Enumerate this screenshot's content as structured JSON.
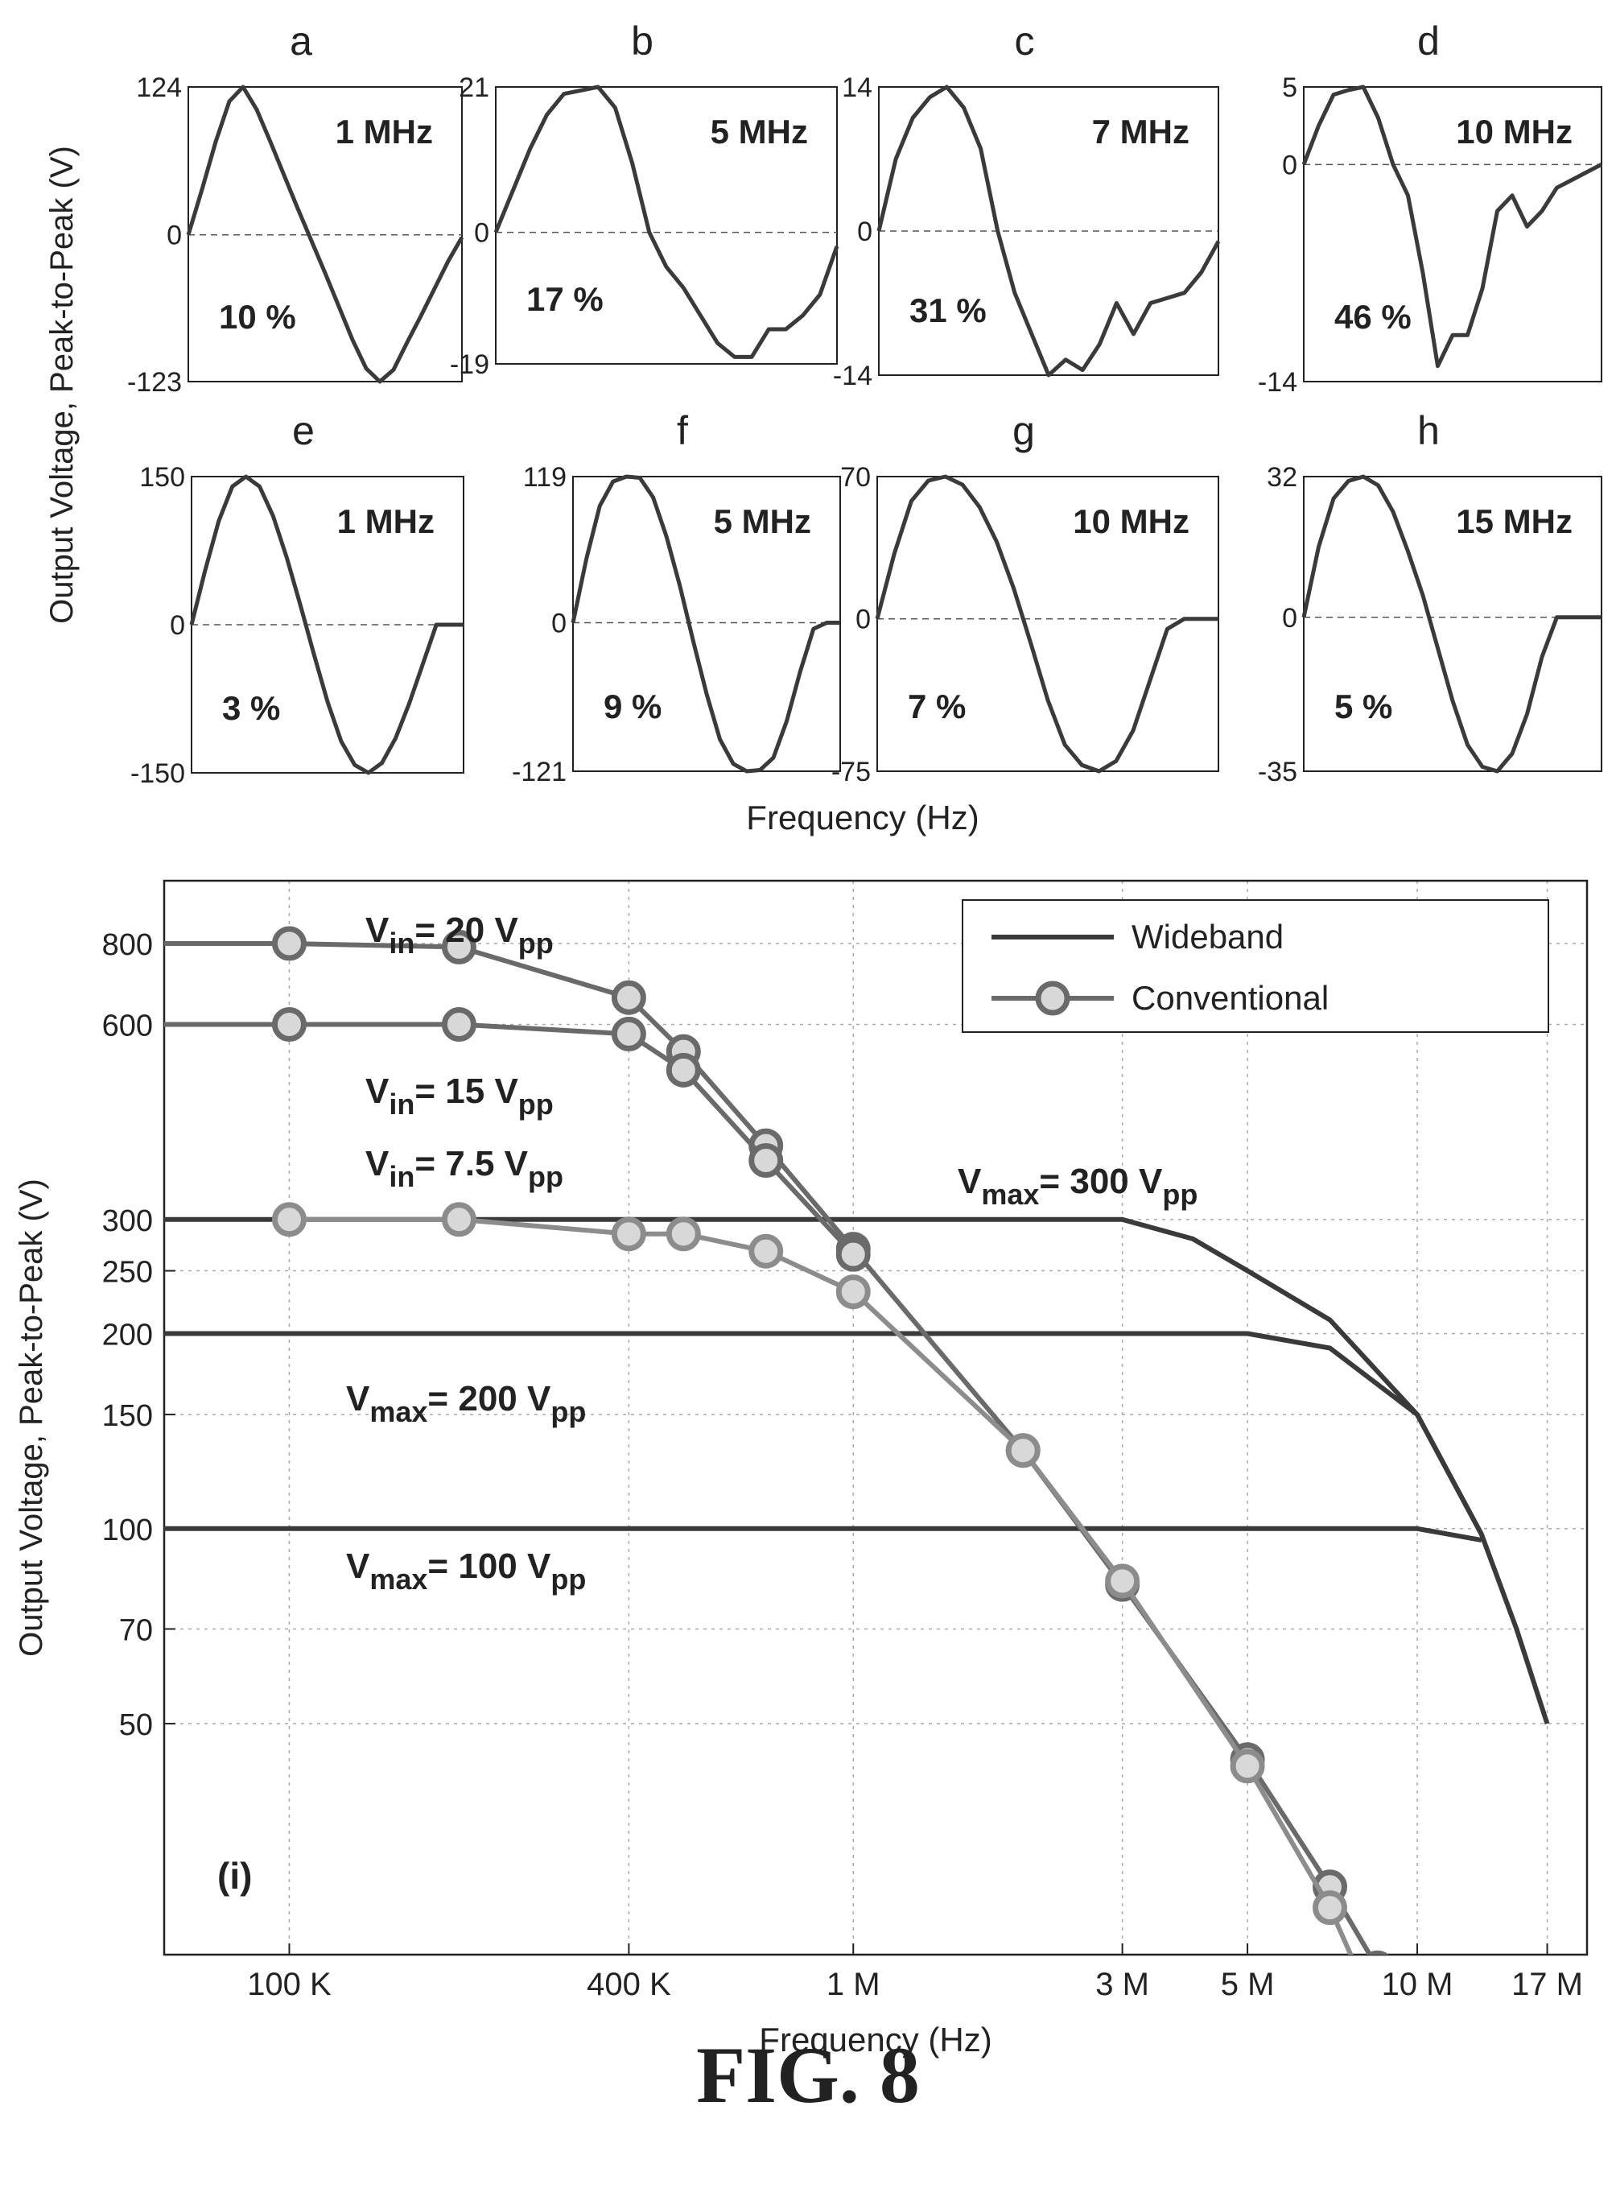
{
  "figure_label": "FIG. 8",
  "colors": {
    "axis": "#222222",
    "grid": "#aaaaaa",
    "wideband": "#3a3a3a",
    "conventional": "#6a6a6a",
    "light": "#8c8c8c"
  },
  "chart_data": [
    {
      "panel": "a",
      "type": "line",
      "frequency": "1 MHz",
      "percent": "10 %",
      "yticks": [
        "124",
        "0",
        "-123"
      ],
      "ylim": [
        -123,
        124
      ],
      "x": [
        0,
        0.05,
        0.1,
        0.15,
        0.2,
        0.25,
        0.3,
        0.35,
        0.4,
        0.45,
        0.5,
        0.55,
        0.6,
        0.65,
        0.7,
        0.75,
        0.8,
        0.85,
        0.9,
        0.95,
        1
      ],
      "values": [
        0,
        38,
        78,
        112,
        124,
        105,
        78,
        50,
        22,
        -5,
        -32,
        -60,
        -88,
        -112,
        -123,
        -113,
        -90,
        -68,
        -45,
        -22,
        -2
      ]
    },
    {
      "panel": "b",
      "type": "line",
      "frequency": "5 MHz",
      "percent": "17 %",
      "yticks": [
        "21",
        "0",
        "-19"
      ],
      "ylim": [
        -19,
        21
      ],
      "x": [
        0,
        0.05,
        0.1,
        0.15,
        0.2,
        0.25,
        0.3,
        0.35,
        0.4,
        0.45,
        0.5,
        0.55,
        0.6,
        0.65,
        0.7,
        0.75,
        0.8,
        0.85,
        0.9,
        0.95,
        1
      ],
      "values": [
        0,
        6,
        12,
        17,
        20,
        20.5,
        21,
        18,
        10,
        0,
        -5,
        -8,
        -12,
        -16,
        -18,
        -18,
        -14,
        -14,
        -12,
        -9,
        -2
      ]
    },
    {
      "panel": "c",
      "type": "line",
      "frequency": "7 MHz",
      "percent": "31 %",
      "yticks": [
        "14",
        "0",
        "-14"
      ],
      "ylim": [
        -14,
        14
      ],
      "x": [
        0,
        0.05,
        0.1,
        0.15,
        0.2,
        0.25,
        0.3,
        0.35,
        0.4,
        0.45,
        0.5,
        0.55,
        0.6,
        0.65,
        0.7,
        0.75,
        0.8,
        0.85,
        0.9,
        0.95,
        1
      ],
      "values": [
        0,
        7,
        11,
        13,
        14,
        12,
        8,
        0,
        -6,
        -10,
        -14,
        -12.5,
        -13.5,
        -11,
        -7,
        -10,
        -7,
        -6.5,
        -6,
        -4,
        -1
      ]
    },
    {
      "panel": "d",
      "type": "line",
      "frequency": "10 MHz",
      "percent": "46 %",
      "yticks": [
        "5",
        "0",
        "-14"
      ],
      "ylim": [
        -14,
        5
      ],
      "x": [
        0,
        0.05,
        0.1,
        0.15,
        0.2,
        0.25,
        0.3,
        0.35,
        0.4,
        0.45,
        0.5,
        0.55,
        0.6,
        0.65,
        0.7,
        0.75,
        0.8,
        0.85,
        0.9,
        0.95,
        1
      ],
      "values": [
        0,
        2.5,
        4.5,
        4.8,
        5,
        3,
        0,
        -2,
        -7,
        -13,
        -11,
        -11,
        -8,
        -3,
        -2,
        -4,
        -3,
        -1.5,
        -1,
        -0.5,
        0
      ]
    },
    {
      "panel": "e",
      "type": "line",
      "frequency": "1 MHz",
      "percent": "3 %",
      "yticks": [
        "150",
        "0",
        "-150"
      ],
      "ylim": [
        -150,
        150
      ],
      "x": [
        0,
        0.05,
        0.1,
        0.15,
        0.2,
        0.25,
        0.3,
        0.35,
        0.4,
        0.45,
        0.5,
        0.55,
        0.6,
        0.65,
        0.7,
        0.75,
        0.8,
        0.85,
        0.9,
        0.95,
        1
      ],
      "values": [
        0,
        55,
        105,
        140,
        150,
        140,
        110,
        68,
        20,
        -30,
        -78,
        -118,
        -142,
        -150,
        -140,
        -115,
        -80,
        -40,
        0,
        0,
        0
      ]
    },
    {
      "panel": "f",
      "type": "line",
      "frequency": "5 MHz",
      "percent": "9 %",
      "yticks": [
        "119",
        "0",
        "-121"
      ],
      "ylim": [
        -121,
        119
      ],
      "x": [
        0,
        0.05,
        0.1,
        0.15,
        0.2,
        0.25,
        0.3,
        0.35,
        0.4,
        0.45,
        0.5,
        0.55,
        0.6,
        0.65,
        0.7,
        0.75,
        0.8,
        0.85,
        0.9,
        0.95,
        1
      ],
      "values": [
        0,
        52,
        95,
        115,
        119,
        118,
        102,
        70,
        30,
        -15,
        -58,
        -95,
        -115,
        -121,
        -120,
        -110,
        -80,
        -40,
        -5,
        0,
        0
      ]
    },
    {
      "panel": "g",
      "type": "line",
      "frequency": "10 MHz",
      "percent": "7 %",
      "yticks": [
        "70",
        "0",
        "-75"
      ],
      "ylim": [
        -75,
        70
      ],
      "x": [
        0,
        0.05,
        0.1,
        0.15,
        0.2,
        0.25,
        0.3,
        0.35,
        0.4,
        0.45,
        0.5,
        0.55,
        0.6,
        0.65,
        0.7,
        0.75,
        0.8,
        0.85,
        0.9,
        0.95,
        1
      ],
      "values": [
        0,
        32,
        58,
        68,
        70,
        66,
        55,
        38,
        15,
        -12,
        -40,
        -62,
        -72,
        -75,
        -70,
        -55,
        -30,
        -5,
        0,
        0,
        0
      ]
    },
    {
      "panel": "h",
      "type": "line",
      "frequency": "15 MHz",
      "percent": "5 %",
      "yticks": [
        "32",
        "0",
        "-35"
      ],
      "ylim": [
        -35,
        32
      ],
      "x": [
        0,
        0.05,
        0.1,
        0.15,
        0.2,
        0.25,
        0.3,
        0.35,
        0.4,
        0.45,
        0.5,
        0.55,
        0.6,
        0.65,
        0.7,
        0.75,
        0.8,
        0.85,
        0.9,
        0.95,
        1
      ],
      "values": [
        0,
        16,
        27,
        31,
        32,
        30,
        24,
        15,
        5,
        -7,
        -19,
        -29,
        -34,
        -35,
        -31,
        -22,
        -9,
        0,
        0,
        0,
        0
      ]
    },
    {
      "panel": "i",
      "type": "line",
      "panel_label": "(i)",
      "xlabel": "Frequency (Hz)",
      "ylabel": "Output Voltage, Peak-to-Peak (V)",
      "xscale": "log",
      "yscale": "log",
      "xlim": [
        60000,
        20000000
      ],
      "ylim": [
        22,
        1000
      ],
      "xticks": [
        100000,
        400000,
        1000000,
        3000000,
        5000000,
        10000000,
        17000000
      ],
      "xtick_labels": [
        "100 K",
        "400 K",
        "1 M",
        "3 M",
        "5 M",
        "10 M",
        "17 M"
      ],
      "yticks": [
        50,
        70,
        100,
        150,
        200,
        250,
        300,
        600,
        800
      ],
      "ytick_labels": [
        "50",
        "70",
        "100",
        "150",
        "200",
        "250",
        "300",
        "600",
        "800"
      ],
      "legend": {
        "position": "top-right",
        "entries": [
          "Wideband",
          "Conventional"
        ]
      },
      "grid": true,
      "series": [
        {
          "name": "Wideband",
          "style": "wideband",
          "x": [
            60000,
            3000000,
            4000000,
            5000000,
            7000000,
            10000000,
            13000000,
            15000000,
            17000000
          ],
          "values": [
            300,
            300,
            280,
            250,
            210,
            150,
            98,
            70,
            50
          ]
        },
        {
          "name": "Wideband",
          "style": "wideband",
          "x": [
            60000,
            5000000,
            7000000,
            10000000,
            13000000
          ],
          "values": [
            200,
            200,
            190,
            150,
            98
          ]
        },
        {
          "name": "Wideband",
          "style": "wideband",
          "x": [
            60000,
            10000000,
            13000000
          ],
          "values": [
            100,
            100,
            96
          ]
        },
        {
          "name": "Conventional",
          "style": "conventional",
          "markers": true,
          "x": [
            60000,
            100000,
            200000,
            400000,
            500000,
            700000,
            1000000,
            2000000,
            3000000,
            5000000,
            7000000,
            8500000
          ],
          "values": [
            800,
            800,
            790,
            660,
            545,
            390,
            270,
            132,
            82,
            44,
            28,
            21
          ]
        },
        {
          "name": "Conventional",
          "style": "conventional",
          "markers": true,
          "x": [
            60000,
            100000,
            200000,
            400000,
            500000,
            700000,
            1000000
          ],
          "values": [
            600,
            600,
            600,
            580,
            510,
            370,
            265
          ]
        },
        {
          "name": "Conventional",
          "style": "light",
          "markers": true,
          "x": [
            100000,
            200000,
            400000,
            500000,
            700000,
            1000000,
            2000000,
            3000000,
            5000000,
            7000000,
            8000000
          ],
          "values": [
            300,
            300,
            285,
            285,
            268,
            232,
            132,
            83,
            43,
            26,
            20
          ]
        }
      ],
      "annotations": [
        {
          "main": "V",
          "sub": "in",
          "text": "= 20 V",
          "sub2": "pp"
        },
        {
          "main": "V",
          "sub": "in",
          "text": "= 15 V",
          "sub2": "pp"
        },
        {
          "main": "V",
          "sub": "in",
          "text": "= 7.5 V",
          "sub2": "pp"
        },
        {
          "main": "V",
          "sub": "max",
          "text": "= 300 V",
          "sub2": "pp"
        },
        {
          "main": "V",
          "sub": "max",
          "text": "= 200 V",
          "sub2": "pp"
        },
        {
          "main": "V",
          "sub": "max",
          "text": "= 100 V",
          "sub2": "pp"
        }
      ]
    }
  ],
  "shared": {
    "top_ylabel": "Output Voltage, Peak-to-Peak (V)",
    "top_xlabel": "Frequency (Hz)"
  }
}
